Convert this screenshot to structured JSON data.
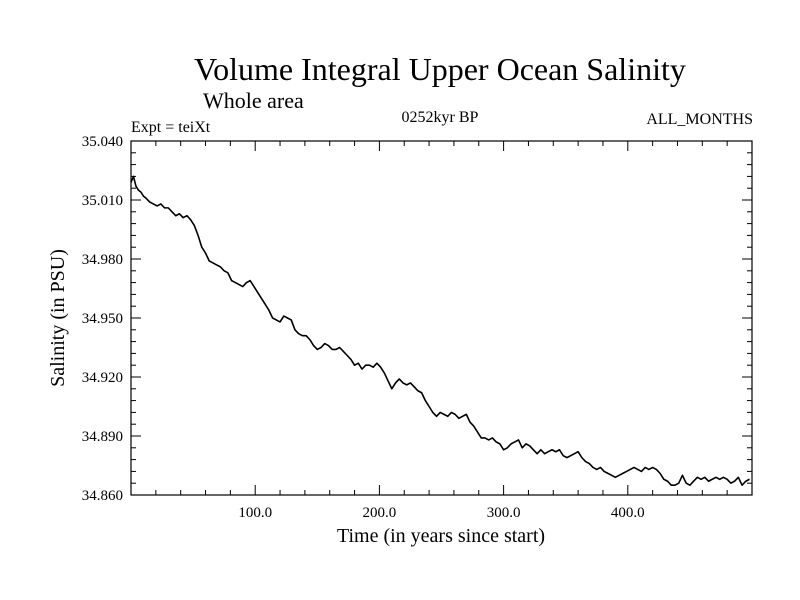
{
  "chart_data": {
    "type": "line",
    "title": "Volume Integral Upper Ocean Salinity",
    "subtitle": "Whole area",
    "left_label": "Expt = teiXt",
    "center_label": "0252kyr BP",
    "right_label": "ALL_MONTHS",
    "xlabel": "Time (in years since start)",
    "ylabel": "Salinity (in PSU)",
    "xlim": [
      0,
      500
    ],
    "ylim": [
      34.86,
      35.04
    ],
    "x_ticks": [
      100,
      200,
      300,
      400
    ],
    "x_tick_labels": [
      "100.0",
      "200.0",
      "300.0",
      "400.0"
    ],
    "y_ticks": [
      34.86,
      34.89,
      34.92,
      34.95,
      34.98,
      35.01,
      35.04
    ],
    "y_tick_labels": [
      "34.860",
      "34.890",
      "34.920",
      "34.950",
      "34.980",
      "35.010",
      "35.040"
    ],
    "grid": false,
    "series": [
      {
        "x": [
          0,
          2,
          4,
          6,
          8,
          10,
          12,
          15,
          18,
          21,
          24,
          27,
          30,
          33,
          36,
          39,
          42,
          45,
          48,
          51,
          54,
          57,
          60,
          63,
          66,
          69,
          72,
          75,
          78,
          81,
          84,
          87,
          90,
          93,
          96,
          99,
          102,
          105,
          108,
          111,
          114,
          117,
          120,
          123,
          126,
          129,
          132,
          135,
          138,
          141,
          144,
          147,
          150,
          153,
          156,
          159,
          162,
          165,
          168,
          171,
          174,
          177,
          180,
          183,
          186,
          189,
          192,
          195,
          198,
          201,
          204,
          207,
          210,
          213,
          216,
          219,
          222,
          225,
          228,
          231,
          234,
          237,
          240,
          243,
          246,
          249,
          252,
          255,
          258,
          261,
          264,
          267,
          270,
          273,
          276,
          279,
          282,
          285,
          288,
          291,
          294,
          297,
          300,
          303,
          306,
          309,
          312,
          315,
          318,
          321,
          324,
          327,
          330,
          333,
          336,
          339,
          342,
          345,
          348,
          351,
          354,
          357,
          360,
          363,
          366,
          369,
          372,
          375,
          378,
          381,
          384,
          387,
          390,
          393,
          396,
          399,
          402,
          405,
          408,
          411,
          414,
          417,
          420,
          423,
          426,
          429,
          432,
          435,
          438,
          441,
          444,
          447,
          450,
          453,
          456,
          459,
          462,
          465,
          468,
          471,
          474,
          477,
          480,
          483,
          486,
          489,
          492,
          495,
          498
        ],
        "y": [
          35.019,
          35.022,
          35.017,
          35.015,
          35.014,
          35.012,
          35.011,
          35.009,
          35.008,
          35.007,
          35.008,
          35.006,
          35.006,
          35.004,
          35.002,
          35.003,
          35.001,
          35.002,
          35.0,
          34.997,
          34.992,
          34.986,
          34.983,
          34.979,
          34.978,
          34.977,
          34.976,
          34.974,
          34.973,
          34.969,
          34.968,
          34.967,
          34.966,
          34.968,
          34.969,
          34.966,
          34.963,
          34.96,
          34.957,
          34.954,
          34.95,
          34.949,
          34.948,
          34.951,
          34.95,
          34.949,
          34.944,
          34.942,
          34.941,
          34.941,
          34.939,
          34.936,
          34.934,
          34.935,
          34.937,
          34.936,
          34.934,
          34.934,
          34.935,
          34.933,
          34.931,
          34.929,
          34.926,
          34.927,
          34.924,
          34.926,
          34.926,
          34.925,
          34.927,
          34.925,
          34.922,
          34.918,
          34.914,
          34.917,
          34.919,
          34.917,
          34.916,
          34.917,
          34.915,
          34.913,
          34.912,
          34.908,
          34.905,
          34.902,
          34.9,
          34.902,
          34.901,
          34.9,
          34.902,
          34.901,
          34.899,
          34.9,
          34.901,
          34.897,
          34.895,
          34.892,
          34.889,
          34.889,
          34.888,
          34.889,
          34.887,
          34.886,
          34.883,
          34.884,
          34.886,
          34.887,
          34.888,
          34.884,
          34.886,
          34.885,
          34.883,
          34.881,
          34.883,
          34.881,
          34.882,
          34.883,
          34.882,
          34.883,
          34.88,
          34.879,
          34.88,
          34.881,
          34.882,
          34.879,
          34.877,
          34.876,
          34.874,
          34.873,
          34.874,
          34.872,
          34.871,
          34.87,
          34.869,
          34.87,
          34.871,
          34.872,
          34.873,
          34.874,
          34.873,
          34.872,
          34.874,
          34.873,
          34.874,
          34.873,
          34.871,
          34.868,
          34.867,
          34.865,
          34.865,
          34.866,
          34.87,
          34.866,
          34.865,
          34.867,
          34.869,
          34.868,
          34.869,
          34.867,
          34.868,
          34.869,
          34.868,
          34.869,
          34.868,
          34.866,
          34.867,
          34.869,
          34.865,
          34.867,
          34.868
        ]
      }
    ]
  }
}
